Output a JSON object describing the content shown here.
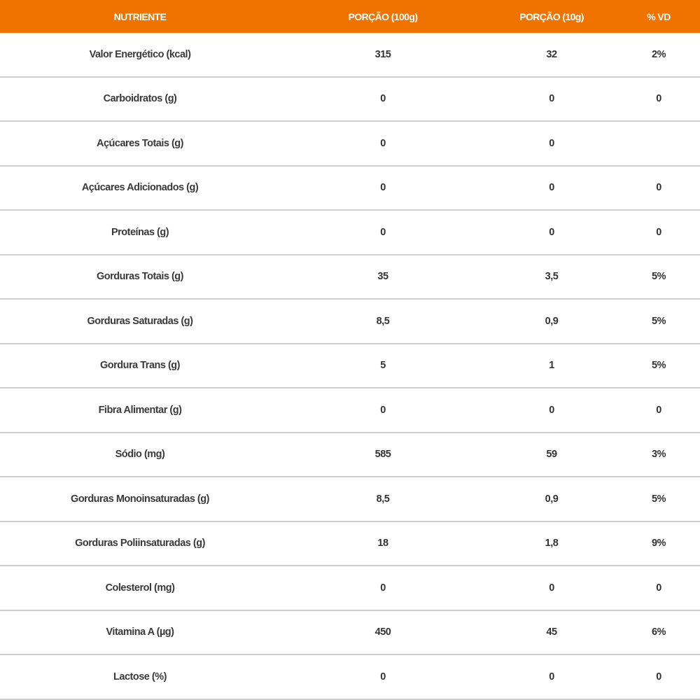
{
  "header": [
    "NUTRIENTE",
    "PORÇÃO (100g)",
    "PORÇÃO (10g)",
    "% VD"
  ],
  "accent_color": "#f07300",
  "rows": [
    [
      "Valor Energético (kcal)",
      "315",
      "32",
      "2%"
    ],
    [
      "Carboidratos (g)",
      "0",
      "0",
      "0"
    ],
    [
      "Açúcares Totais (g)",
      "0",
      "0",
      ""
    ],
    [
      "Açúcares Adicionados (g)",
      "0",
      "0",
      "0"
    ],
    [
      "Proteínas (g)",
      "0",
      "0",
      "0"
    ],
    [
      "Gorduras Totais (g)",
      "35",
      "3,5",
      "5%"
    ],
    [
      "Gorduras  Saturadas (g)",
      "8,5",
      "0,9",
      "5%"
    ],
    [
      "Gordura Trans (g)",
      "5",
      "1",
      "5%"
    ],
    [
      "Fibra Alimentar (g)",
      "0",
      "0",
      "0"
    ],
    [
      "Sódio (mg)",
      "585",
      "59",
      "3%"
    ],
    [
      "Gorduras Monoinsaturadas (g)",
      "8,5",
      "0,9",
      "5%"
    ],
    [
      "Gorduras Poliinsaturadas (g)",
      "18",
      "1,8",
      "9%"
    ],
    [
      "Colesterol (mg)",
      "0",
      "0",
      "0"
    ],
    [
      "Vitamina A (µg)",
      "450",
      "45",
      "6%"
    ],
    [
      "Lactose (%)",
      "0",
      "0",
      "0"
    ]
  ]
}
